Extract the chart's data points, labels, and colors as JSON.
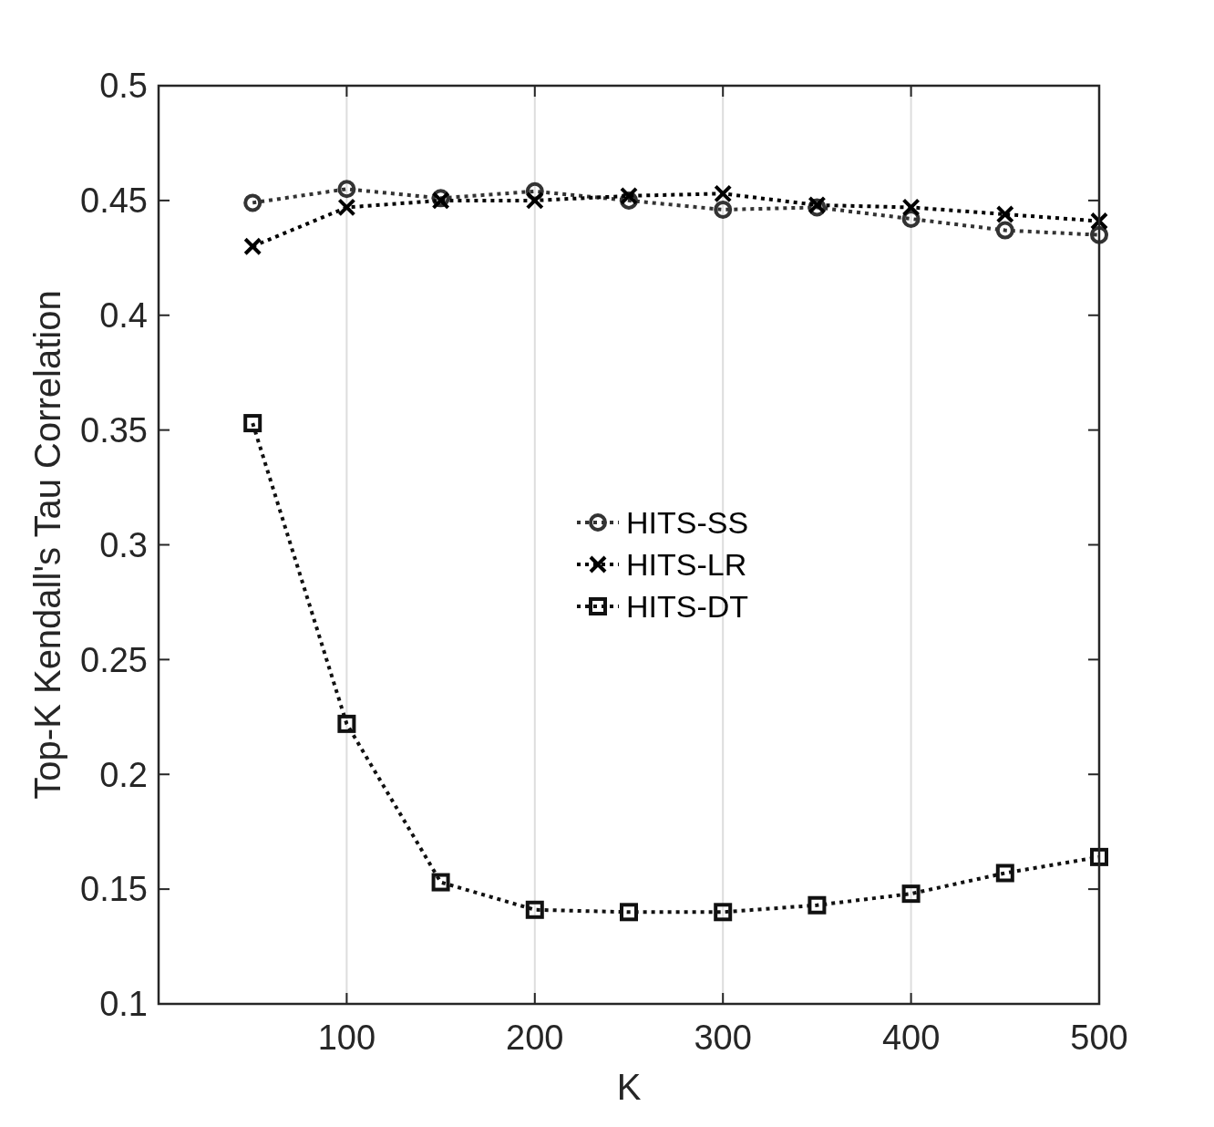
{
  "chart_data": {
    "type": "line",
    "xlabel": "K",
    "ylabel": "Top-K Kendall's Tau Correlation",
    "x": [
      50,
      100,
      150,
      200,
      250,
      300,
      350,
      400,
      450,
      500
    ],
    "xlim": [
      0,
      500
    ],
    "xticks": [
      100,
      200,
      300,
      400,
      500
    ],
    "ylim": [
      0.1,
      0.5
    ],
    "yticks": [
      0.1,
      0.15,
      0.2,
      0.25,
      0.3,
      0.35,
      0.4,
      0.45,
      0.5
    ],
    "grid": "x",
    "legend": "center",
    "line_style": "dotted",
    "series": [
      {
        "name": "HITS-SS",
        "color": "#333333",
        "marker": "circle",
        "values": [
          0.449,
          0.455,
          0.451,
          0.454,
          0.45,
          0.446,
          0.447,
          0.442,
          0.437,
          0.435
        ]
      },
      {
        "name": "HITS-LR",
        "color": "#000000",
        "marker": "cross",
        "values": [
          0.43,
          0.447,
          0.45,
          0.45,
          0.452,
          0.453,
          0.448,
          0.447,
          0.444,
          0.441
        ]
      },
      {
        "name": "HITS-DT",
        "color": "#111111",
        "marker": "square",
        "values": [
          0.353,
          0.222,
          0.153,
          0.141,
          0.14,
          0.14,
          0.143,
          0.148,
          0.157,
          0.164
        ]
      }
    ]
  }
}
